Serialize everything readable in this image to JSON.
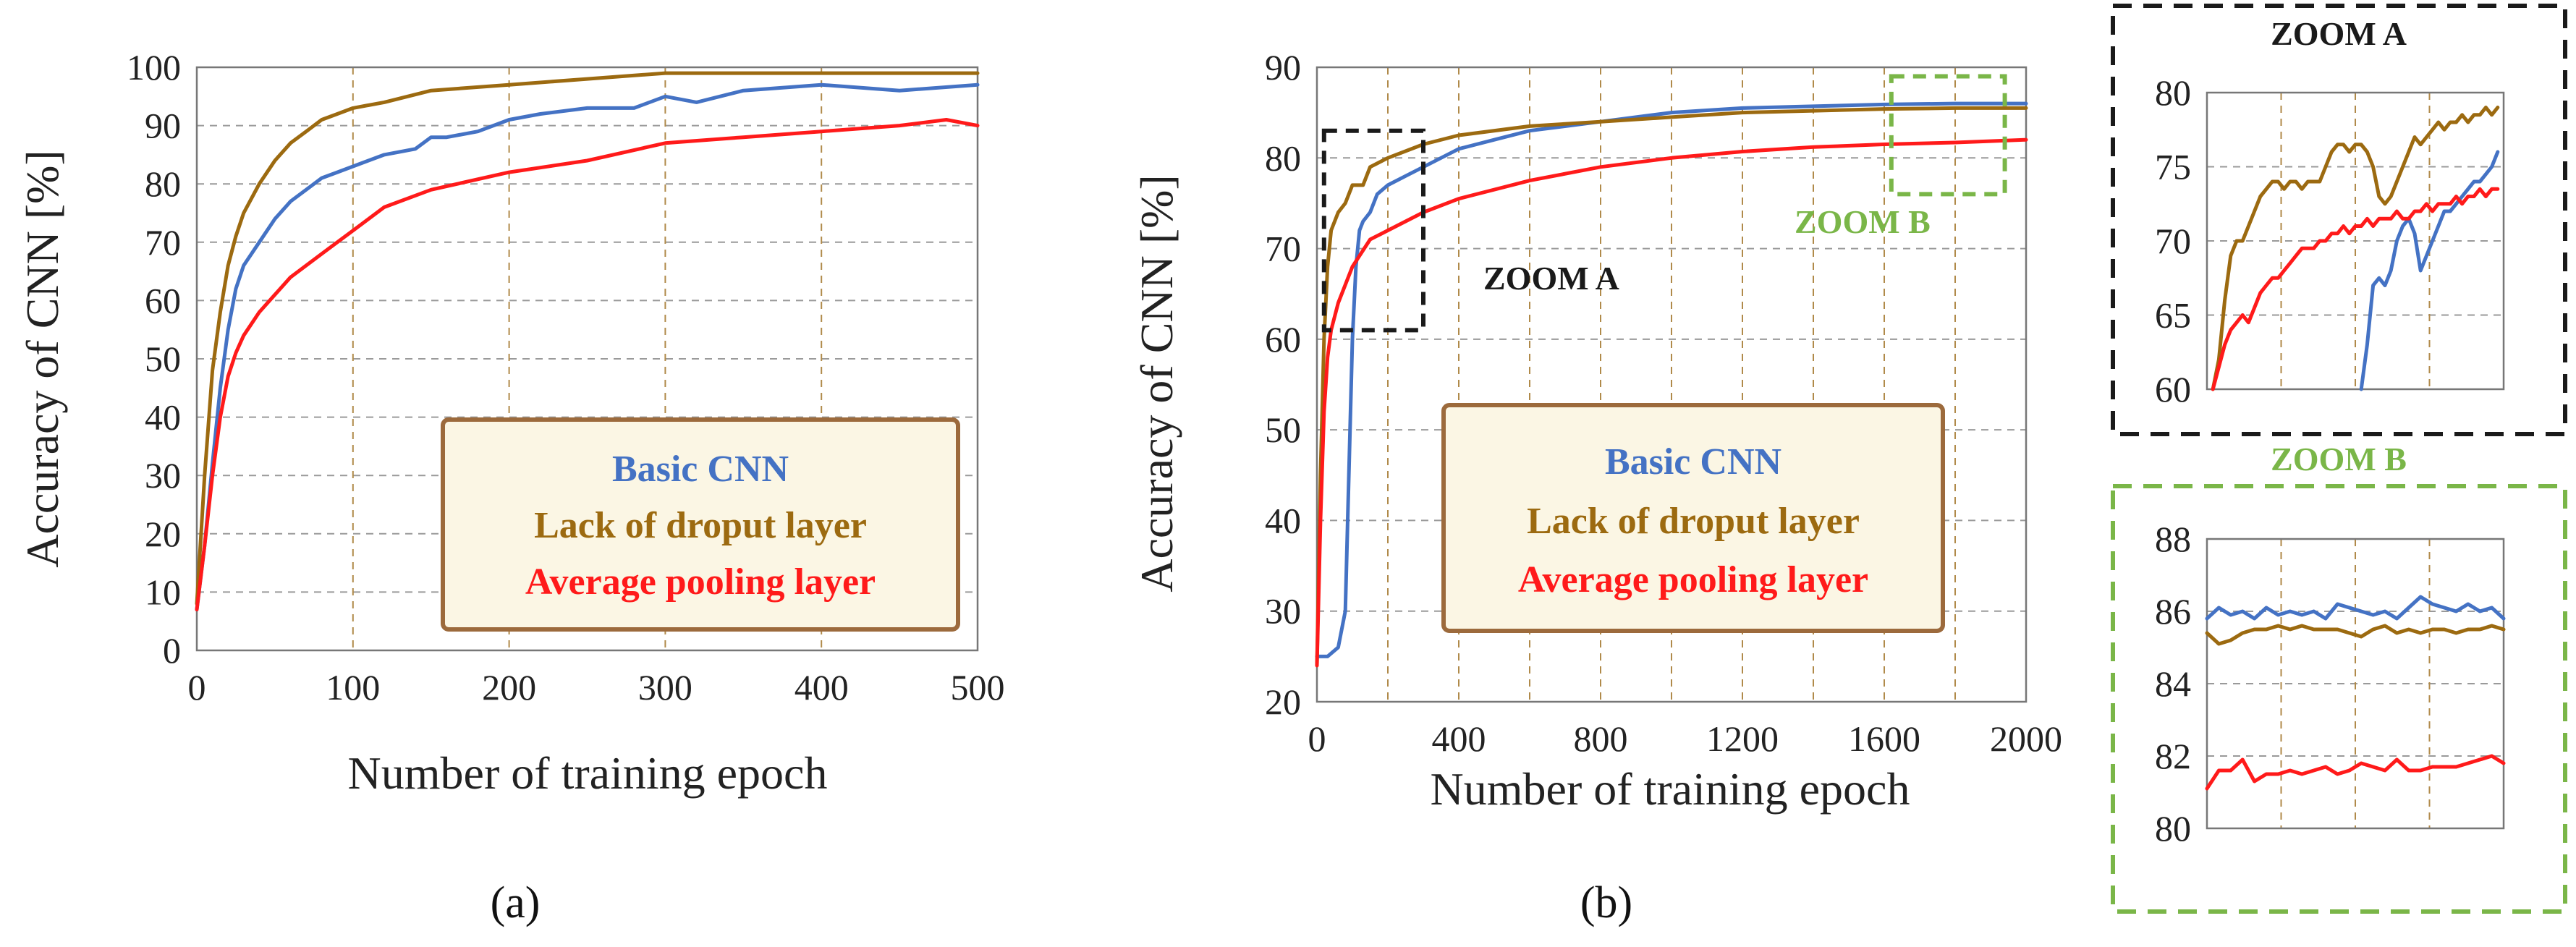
{
  "figure": {
    "caption_a": "(a)",
    "caption_b": "(b)"
  },
  "colors": {
    "basic_cnn": "#4472c4",
    "lack_of_dropout": "#9c6a10",
    "average_pooling": "#ff1a1a",
    "legend_border": "#9c6a3c",
    "legend_fill": "#fbf6e4",
    "zoom_a_box": "#1a1a1a",
    "zoom_b_box": "#7ab648",
    "grid_vertical": "#b08a4a",
    "grid_horizontal": "#9a9a9a"
  },
  "legend": {
    "basic_cnn": "Basic CNN",
    "lack_of_dropout": "Lack of droput layer",
    "average_pooling": "Average pooling  layer"
  },
  "zoom_labels": {
    "zoom_a": "ZOOM A",
    "zoom_b": "ZOOM B"
  },
  "chart_data": [
    {
      "id": "a",
      "type": "line",
      "title": "",
      "xlabel": "Number of training epoch",
      "ylabel": "Accuracy of CNN [%]",
      "xlim": [
        0,
        500
      ],
      "ylim": [
        0,
        100
      ],
      "xticks": [
        0,
        100,
        200,
        300,
        400,
        500
      ],
      "yticks": [
        0,
        10,
        20,
        30,
        40,
        50,
        60,
        70,
        80,
        90,
        100
      ],
      "series": [
        {
          "name": "Basic CNN",
          "key": "basic_cnn",
          "x": [
            0,
            5,
            10,
            15,
            20,
            25,
            30,
            40,
            50,
            60,
            70,
            80,
            90,
            100,
            120,
            140,
            150,
            160,
            180,
            200,
            220,
            250,
            280,
            300,
            320,
            350,
            400,
            450,
            500
          ],
          "y": [
            7,
            18,
            32,
            45,
            55,
            62,
            66,
            70,
            74,
            77,
            79,
            81,
            82,
            83,
            85,
            86,
            88,
            88,
            89,
            91,
            92,
            93,
            93,
            95,
            94,
            96,
            97,
            96,
            97
          ]
        },
        {
          "name": "Lack of droput layer",
          "key": "lack_of_dropout",
          "x": [
            0,
            5,
            10,
            15,
            20,
            25,
            30,
            40,
            50,
            60,
            70,
            80,
            90,
            100,
            120,
            150,
            200,
            250,
            300,
            350,
            400,
            450,
            500
          ],
          "y": [
            8,
            30,
            48,
            58,
            66,
            71,
            75,
            80,
            84,
            87,
            89,
            91,
            92,
            93,
            94,
            96,
            97,
            98,
            99,
            99,
            99,
            99,
            99
          ]
        },
        {
          "name": "Average pooling  layer",
          "key": "average_pooling",
          "x": [
            0,
            5,
            10,
            15,
            20,
            25,
            30,
            40,
            50,
            60,
            70,
            80,
            90,
            100,
            120,
            150,
            200,
            250,
            300,
            350,
            400,
            450,
            480,
            500
          ],
          "y": [
            7,
            18,
            30,
            40,
            47,
            51,
            54,
            58,
            61,
            64,
            66,
            68,
            70,
            72,
            76,
            79,
            82,
            84,
            87,
            88,
            89,
            90,
            91,
            90
          ]
        }
      ]
    },
    {
      "id": "b",
      "type": "line",
      "title": "",
      "xlabel": "Number of training epoch",
      "ylabel": "Accuracy of CNN [%]",
      "xlim": [
        0,
        2000
      ],
      "ylim": [
        20,
        90
      ],
      "xticks": [
        0,
        400,
        800,
        1200,
        1600,
        2000
      ],
      "yticks": [
        20,
        30,
        40,
        50,
        60,
        70,
        80,
        90
      ],
      "zoom_regions": [
        {
          "label": "ZOOM A",
          "x": [
            20,
            300
          ],
          "y": [
            61,
            83
          ]
        },
        {
          "label": "ZOOM B",
          "x": [
            1620,
            1940
          ],
          "y": [
            76,
            89
          ]
        }
      ],
      "series": [
        {
          "name": "Basic CNN",
          "key": "basic_cnn",
          "x": [
            0,
            30,
            60,
            80,
            90,
            100,
            110,
            120,
            130,
            150,
            170,
            200,
            250,
            300,
            400,
            500,
            600,
            800,
            1000,
            1200,
            1400,
            1600,
            1800,
            2000
          ],
          "y": [
            25,
            25,
            26,
            30,
            45,
            60,
            68,
            72,
            73,
            74,
            76,
            77,
            78,
            79,
            81,
            82,
            83,
            84,
            85,
            85.5,
            85.7,
            85.9,
            86,
            86
          ]
        },
        {
          "name": "Lack of droput layer",
          "key": "lack_of_dropout",
          "x": [
            0,
            10,
            20,
            30,
            40,
            60,
            80,
            100,
            130,
            150,
            200,
            300,
            400,
            600,
            800,
            1000,
            1200,
            1400,
            1600,
            1800,
            2000
          ],
          "y": [
            24,
            45,
            60,
            68,
            72,
            74,
            75,
            77,
            77,
            79,
            80,
            81.5,
            82.5,
            83.5,
            84,
            84.5,
            85,
            85.2,
            85.4,
            85.5,
            85.5
          ]
        },
        {
          "name": "Average pooling  layer",
          "key": "average_pooling",
          "x": [
            0,
            10,
            20,
            30,
            40,
            60,
            80,
            100,
            150,
            200,
            300,
            400,
            600,
            800,
            1000,
            1200,
            1400,
            1600,
            1800,
            2000
          ],
          "y": [
            24,
            40,
            52,
            58,
            61,
            64,
            66,
            68,
            71,
            72,
            74,
            75.5,
            77.5,
            79,
            80,
            80.7,
            81.2,
            81.5,
            81.7,
            82
          ]
        }
      ]
    },
    {
      "id": "zoom_a",
      "type": "line",
      "title": "ZOOM A",
      "xlim": [
        0,
        100
      ],
      "ylim": [
        60,
        80
      ],
      "yticks": [
        60,
        65,
        70,
        75,
        80
      ],
      "series": [
        {
          "name": "Basic CNN",
          "key": "basic_cnn",
          "x": [
            52,
            54,
            56,
            58,
            60,
            62,
            64,
            66,
            68,
            70,
            72,
            74,
            76,
            78,
            80,
            82,
            84,
            86,
            88,
            90,
            92,
            94,
            96,
            98
          ],
          "y": [
            60,
            63,
            67,
            67.5,
            67,
            68,
            70,
            71,
            71.5,
            70.5,
            68,
            69,
            70,
            71,
            72,
            72,
            72.5,
            73,
            73.5,
            74,
            74,
            74.5,
            75,
            76
          ]
        },
        {
          "name": "Lack of droput layer",
          "key": "lack_of_dropout",
          "x": [
            2,
            4,
            6,
            8,
            10,
            12,
            14,
            16,
            18,
            20,
            22,
            24,
            26,
            28,
            30,
            32,
            34,
            36,
            38,
            40,
            42,
            44,
            46,
            48,
            50,
            52,
            54,
            56,
            58,
            60,
            62,
            64,
            66,
            68,
            70,
            72,
            74,
            76,
            78,
            80,
            82,
            84,
            86,
            88,
            90,
            92,
            94,
            96,
            98
          ],
          "y": [
            60,
            62,
            66,
            69,
            70,
            70,
            71,
            72,
            73,
            73.5,
            74,
            74,
            73.5,
            74,
            74,
            73.5,
            74,
            74,
            74,
            75,
            76,
            76.5,
            76.5,
            76,
            76.5,
            76.5,
            76,
            75,
            73,
            72.5,
            73,
            74,
            75,
            76,
            77,
            76.5,
            77,
            77.5,
            78,
            77.5,
            78,
            78,
            78.5,
            78,
            78.5,
            78.5,
            79,
            78.5,
            79
          ]
        },
        {
          "name": "Average pooling  layer",
          "key": "average_pooling",
          "x": [
            2,
            4,
            6,
            8,
            10,
            12,
            14,
            16,
            18,
            20,
            22,
            24,
            26,
            28,
            30,
            32,
            34,
            36,
            38,
            40,
            42,
            44,
            46,
            48,
            50,
            52,
            54,
            56,
            58,
            60,
            62,
            64,
            66,
            68,
            70,
            72,
            74,
            76,
            78,
            80,
            82,
            84,
            86,
            88,
            90,
            92,
            94,
            96,
            98
          ],
          "y": [
            60,
            61.5,
            63,
            64,
            64.5,
            65,
            64.5,
            65.5,
            66.5,
            67,
            67.5,
            67.5,
            68,
            68.5,
            69,
            69.5,
            69.5,
            69.5,
            70,
            70,
            70.5,
            70.5,
            71,
            70.5,
            71,
            71,
            71.5,
            71,
            71.5,
            71.5,
            71.5,
            72,
            71.5,
            71.5,
            72,
            72,
            72.5,
            72,
            72.5,
            72.5,
            72.5,
            73,
            72.5,
            73,
            73,
            73.5,
            73,
            73.5,
            73.5
          ]
        }
      ]
    },
    {
      "id": "zoom_b",
      "type": "line",
      "title": "ZOOM B",
      "xlim": [
        0,
        100
      ],
      "ylim": [
        80,
        88
      ],
      "yticks": [
        80,
        82,
        84,
        86,
        88
      ],
      "series": [
        {
          "name": "Basic CNN",
          "key": "basic_cnn",
          "x": [
            0,
            4,
            8,
            12,
            16,
            20,
            24,
            28,
            32,
            36,
            40,
            44,
            48,
            52,
            56,
            60,
            64,
            68,
            72,
            76,
            80,
            84,
            88,
            92,
            96,
            100
          ],
          "y": [
            85.8,
            86.1,
            85.9,
            86,
            85.8,
            86.1,
            85.9,
            86,
            85.9,
            86,
            85.8,
            86.2,
            86.1,
            86,
            85.9,
            86,
            85.8,
            86.1,
            86.4,
            86.2,
            86.1,
            86,
            86.2,
            86,
            86.1,
            85.8
          ]
        },
        {
          "name": "Lack of droput layer",
          "key": "lack_of_dropout",
          "x": [
            0,
            4,
            8,
            12,
            16,
            20,
            24,
            28,
            32,
            36,
            40,
            44,
            48,
            52,
            56,
            60,
            64,
            68,
            72,
            76,
            80,
            84,
            88,
            92,
            96,
            100
          ],
          "y": [
            85.4,
            85.1,
            85.2,
            85.4,
            85.5,
            85.5,
            85.6,
            85.5,
            85.6,
            85.5,
            85.5,
            85.5,
            85.4,
            85.3,
            85.5,
            85.6,
            85.4,
            85.5,
            85.4,
            85.5,
            85.5,
            85.4,
            85.5,
            85.5,
            85.6,
            85.5
          ]
        },
        {
          "name": "Average pooling  layer",
          "key": "average_pooling",
          "x": [
            0,
            4,
            8,
            12,
            16,
            20,
            24,
            28,
            32,
            36,
            40,
            44,
            48,
            52,
            56,
            60,
            64,
            68,
            72,
            76,
            80,
            84,
            88,
            92,
            96,
            100
          ],
          "y": [
            81.1,
            81.6,
            81.6,
            81.9,
            81.3,
            81.5,
            81.5,
            81.6,
            81.5,
            81.6,
            81.7,
            81.5,
            81.6,
            81.8,
            81.7,
            81.6,
            81.9,
            81.6,
            81.6,
            81.7,
            81.7,
            81.7,
            81.8,
            81.9,
            82,
            81.8
          ]
        }
      ]
    }
  ]
}
